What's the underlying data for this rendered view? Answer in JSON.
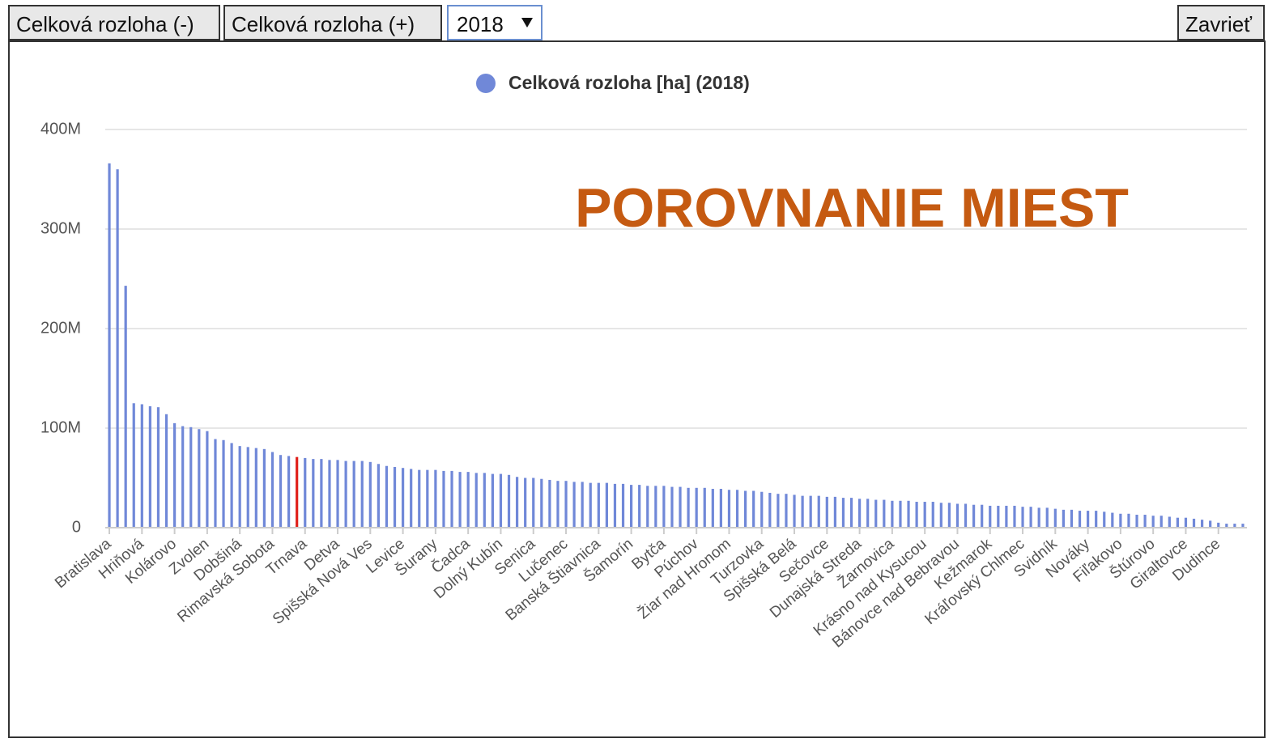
{
  "controls": {
    "buttons": [
      "Celková rozloha (-)",
      "Celková rozloha (+)"
    ],
    "year": "2018",
    "close": "Zavrieť"
  },
  "chart_data": {
    "type": "bar",
    "annotation": "POROVNANIE MIEST",
    "categories": [
      "Bratislava",
      null,
      null,
      null,
      "Hriňová",
      null,
      null,
      null,
      "Kolárovo",
      null,
      null,
      null,
      "Zvolen",
      null,
      null,
      null,
      "Dobšiná",
      null,
      null,
      null,
      "Rimavská Sobota",
      null,
      null,
      null,
      "Trnava",
      null,
      null,
      null,
      "Detva",
      null,
      null,
      null,
      "Spišská Nová Ves",
      null,
      null,
      null,
      "Levice",
      null,
      null,
      null,
      "Šurany",
      null,
      null,
      null,
      "Čadca",
      null,
      null,
      null,
      "Dolný Kubín",
      null,
      null,
      null,
      "Senica",
      null,
      null,
      null,
      "Lučenec",
      null,
      null,
      null,
      "Banská Štiavnica",
      null,
      null,
      null,
      "Šamorín",
      null,
      null,
      null,
      "Bytča",
      null,
      null,
      null,
      "Púchov",
      null,
      null,
      null,
      "Žiar nad Hronom",
      null,
      null,
      null,
      "Turzovka",
      null,
      null,
      null,
      "Spišská Belá",
      null,
      null,
      null,
      "Sečovce",
      null,
      null,
      null,
      "Dunajská Streda",
      null,
      null,
      null,
      "Žarnovica",
      null,
      null,
      null,
      "Krásno nad Kysucou",
      null,
      null,
      null,
      "Bánovce nad Bebravou",
      null,
      null,
      null,
      "Kežmarok",
      null,
      null,
      null,
      "Kráľovský Chlmec",
      null,
      null,
      null,
      "Svidník",
      null,
      null,
      null,
      "Nováky",
      null,
      null,
      null,
      "Fiľakovo",
      null,
      null,
      null,
      "Štúrovo",
      null,
      null,
      null,
      "Giraltovce",
      null,
      null,
      null,
      "Dudince",
      null,
      null,
      null
    ],
    "series": [
      {
        "name": "Celková rozloha [ha] (2018)",
        "color": "#7088d8",
        "highlight_color": "#e0201b",
        "highlight_index": 23,
        "values": [
          366000000.0,
          360000000.0,
          243000000.0,
          125000000.0,
          124000000.0,
          122000000.0,
          121000000.0,
          114000000.0,
          105000000.0,
          102000000.0,
          101000000.0,
          99000000.0,
          97000000.0,
          89000000.0,
          88000000.0,
          85000000.0,
          82000000.0,
          81000000.0,
          80000000.0,
          79000000.0,
          76000000.0,
          73000000.0,
          72000000.0,
          71000000.0,
          70000000.0,
          69000000.0,
          69000000.0,
          68000000.0,
          68000000.0,
          67000000.0,
          67000000.0,
          67000000.0,
          66000000.0,
          64000000.0,
          62000000.0,
          61000000.0,
          60000000.0,
          59000000.0,
          58000000.0,
          58000000.0,
          58000000.0,
          57000000.0,
          57000000.0,
          56000000.0,
          56000000.0,
          55000000.0,
          55000000.0,
          54000000.0,
          54000000.0,
          53000000.0,
          51000000.0,
          50000000.0,
          50000000.0,
          49000000.0,
          48000000.0,
          47000000.0,
          47000000.0,
          46000000.0,
          46000000.0,
          45000000.0,
          45000000.0,
          45000000.0,
          44000000.0,
          44000000.0,
          43000000.0,
          43000000.0,
          42000000.0,
          42000000.0,
          42000000.0,
          41000000.0,
          41000000.0,
          40000000.0,
          40000000.0,
          40000000.0,
          39000000.0,
          39000000.0,
          38000000.0,
          38000000.0,
          37000000.0,
          37000000.0,
          36000000.0,
          35000000.0,
          34000000.0,
          34000000.0,
          33000000.0,
          32000000.0,
          32000000.0,
          32000000.0,
          31000000.0,
          31000000.0,
          30000000.0,
          30000000.0,
          29000000.0,
          29000000.0,
          28000000.0,
          28000000.0,
          27000000.0,
          27000000.0,
          27000000.0,
          26000000.0,
          26000000.0,
          26000000.0,
          25000000.0,
          25000000.0,
          24000000.0,
          24000000.0,
          23000000.0,
          23000000.0,
          22000000.0,
          22000000.0,
          22000000.0,
          22000000.0,
          21000000.0,
          21000000.0,
          20000000.0,
          20000000.0,
          19000000.0,
          18000000.0,
          18000000.0,
          17000000.0,
          17000000.0,
          17000000.0,
          16000000.0,
          15000000.0,
          14000000.0,
          14000000.0,
          13000000.0,
          13000000.0,
          12000000.0,
          12000000.0,
          11000000.0,
          10000000.0,
          10000000.0,
          9000000.0,
          8000000.0,
          7000000.0,
          5000000.0,
          4000000.0,
          4000000.0,
          4000000.0
        ]
      }
    ],
    "ylim": [
      0,
      400000000
    ],
    "yticks": [
      0,
      {
        "value": 100000000,
        "label": "100M"
      },
      {
        "value": 200000000,
        "label": "200M"
      },
      {
        "value": 300000000,
        "label": "300M"
      },
      {
        "value": 400000000,
        "label": "400M"
      }
    ],
    "grid": true
  }
}
